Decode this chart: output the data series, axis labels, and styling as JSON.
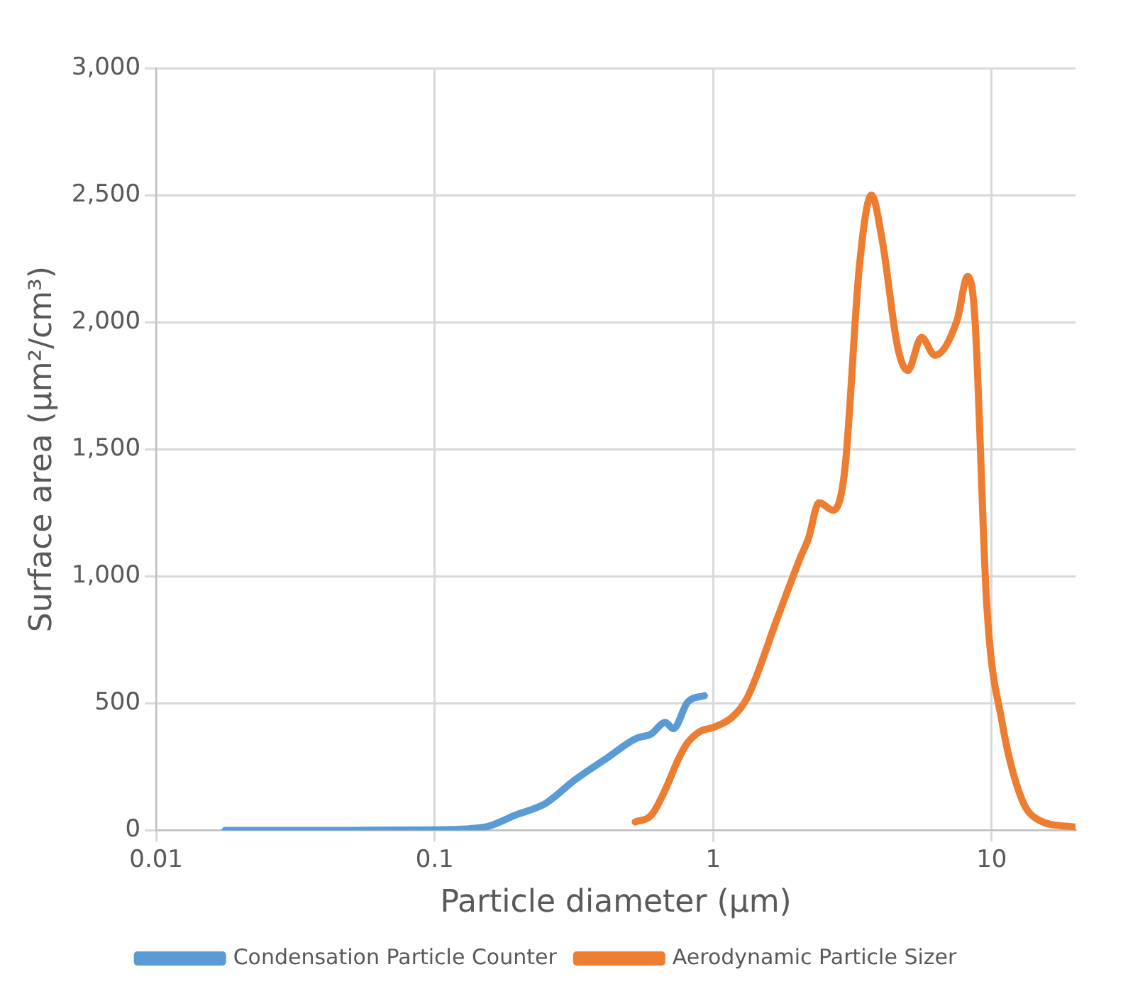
{
  "chart_data": {
    "type": "line",
    "xlabel": "Particle diameter (µm)",
    "ylabel": "Surface area (µm²/cm³)",
    "log": "x",
    "grid": true,
    "legend": "bottom",
    "xlim": [
      0.01,
      20
    ],
    "xticks": [
      0.01,
      0.1,
      1,
      10
    ],
    "ylim": [
      0,
      3000
    ],
    "yticks": [
      0,
      500,
      {
        "value": 1000,
        "label": "1,000"
      },
      {
        "value": 1500,
        "label": "1,500"
      },
      {
        "value": 2000,
        "label": "2,000"
      },
      {
        "value": 2500,
        "label": "2,500"
      },
      {
        "value": 3000,
        "label": "3,000"
      }
    ],
    "series": [
      {
        "name": "Condensation Particle Counter",
        "color": "#5b9bd5",
        "x": [
          0.0177,
          0.05,
          0.1,
          0.152,
          0.195,
          0.25,
          0.32,
          0.41,
          0.525,
          0.6,
          0.673,
          0.72,
          0.81,
          0.93
        ],
        "values": [
          0,
          0,
          2,
          13,
          60,
          106,
          200,
          280,
          360,
          380,
          425,
          400,
          505,
          530
        ]
      },
      {
        "name": "Aerodynamic Particle Sizer",
        "color": "#ed7d31",
        "x": [
          0.525,
          0.6,
          0.673,
          0.75,
          0.81,
          0.9,
          1.0,
          1.17,
          1.33,
          1.7,
          2.05,
          2.2,
          2.4,
          2.7,
          2.97,
          3.35,
          3.7,
          4.05,
          4.6,
          5.0,
          5.6,
          6.25,
          7.5,
          8.2,
          8.7,
          9.6,
          10.9,
          12.8,
          14.8,
          20
        ],
        "values": [
          33,
          60,
          160,
          280,
          345,
          390,
          405,
          445,
          525,
          835,
          1070,
          1150,
          1290,
          1260,
          1420,
          2220,
          2500,
          2320,
          1900,
          1810,
          1940,
          1870,
          2005,
          2180,
          2020,
          890,
          425,
          125,
          40,
          13
        ]
      }
    ]
  }
}
